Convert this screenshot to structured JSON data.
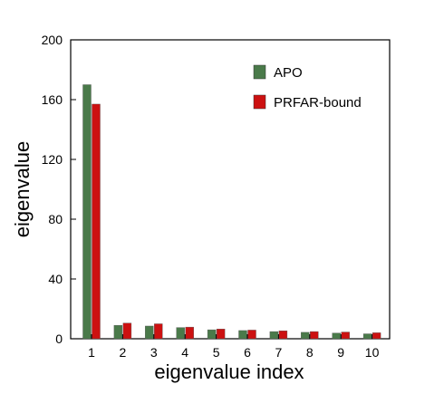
{
  "chart_data": {
    "type": "bar",
    "title": "",
    "xlabel": "eigenvalue index",
    "ylabel": "eigenvalue",
    "categories": [
      "1",
      "2",
      "3",
      "4",
      "5",
      "6",
      "7",
      "8",
      "9",
      "10"
    ],
    "series": [
      {
        "name": "APO",
        "color": "#4a7a4a",
        "values": [
          170,
          9,
          8.5,
          7.5,
          6,
          5.5,
          4.8,
          4.3,
          3.8,
          3.3
        ]
      },
      {
        "name": "PRFAR-bound",
        "color": "#cc1111",
        "values": [
          157,
          10.5,
          10,
          7.8,
          6.5,
          5.8,
          5.3,
          4.8,
          4.5,
          4
        ]
      }
    ],
    "ylim": [
      0,
      200
    ],
    "yticks": [
      "0",
      "40",
      "80",
      "120",
      "160",
      "200"
    ],
    "grid": false,
    "legend_position": "top-right"
  }
}
